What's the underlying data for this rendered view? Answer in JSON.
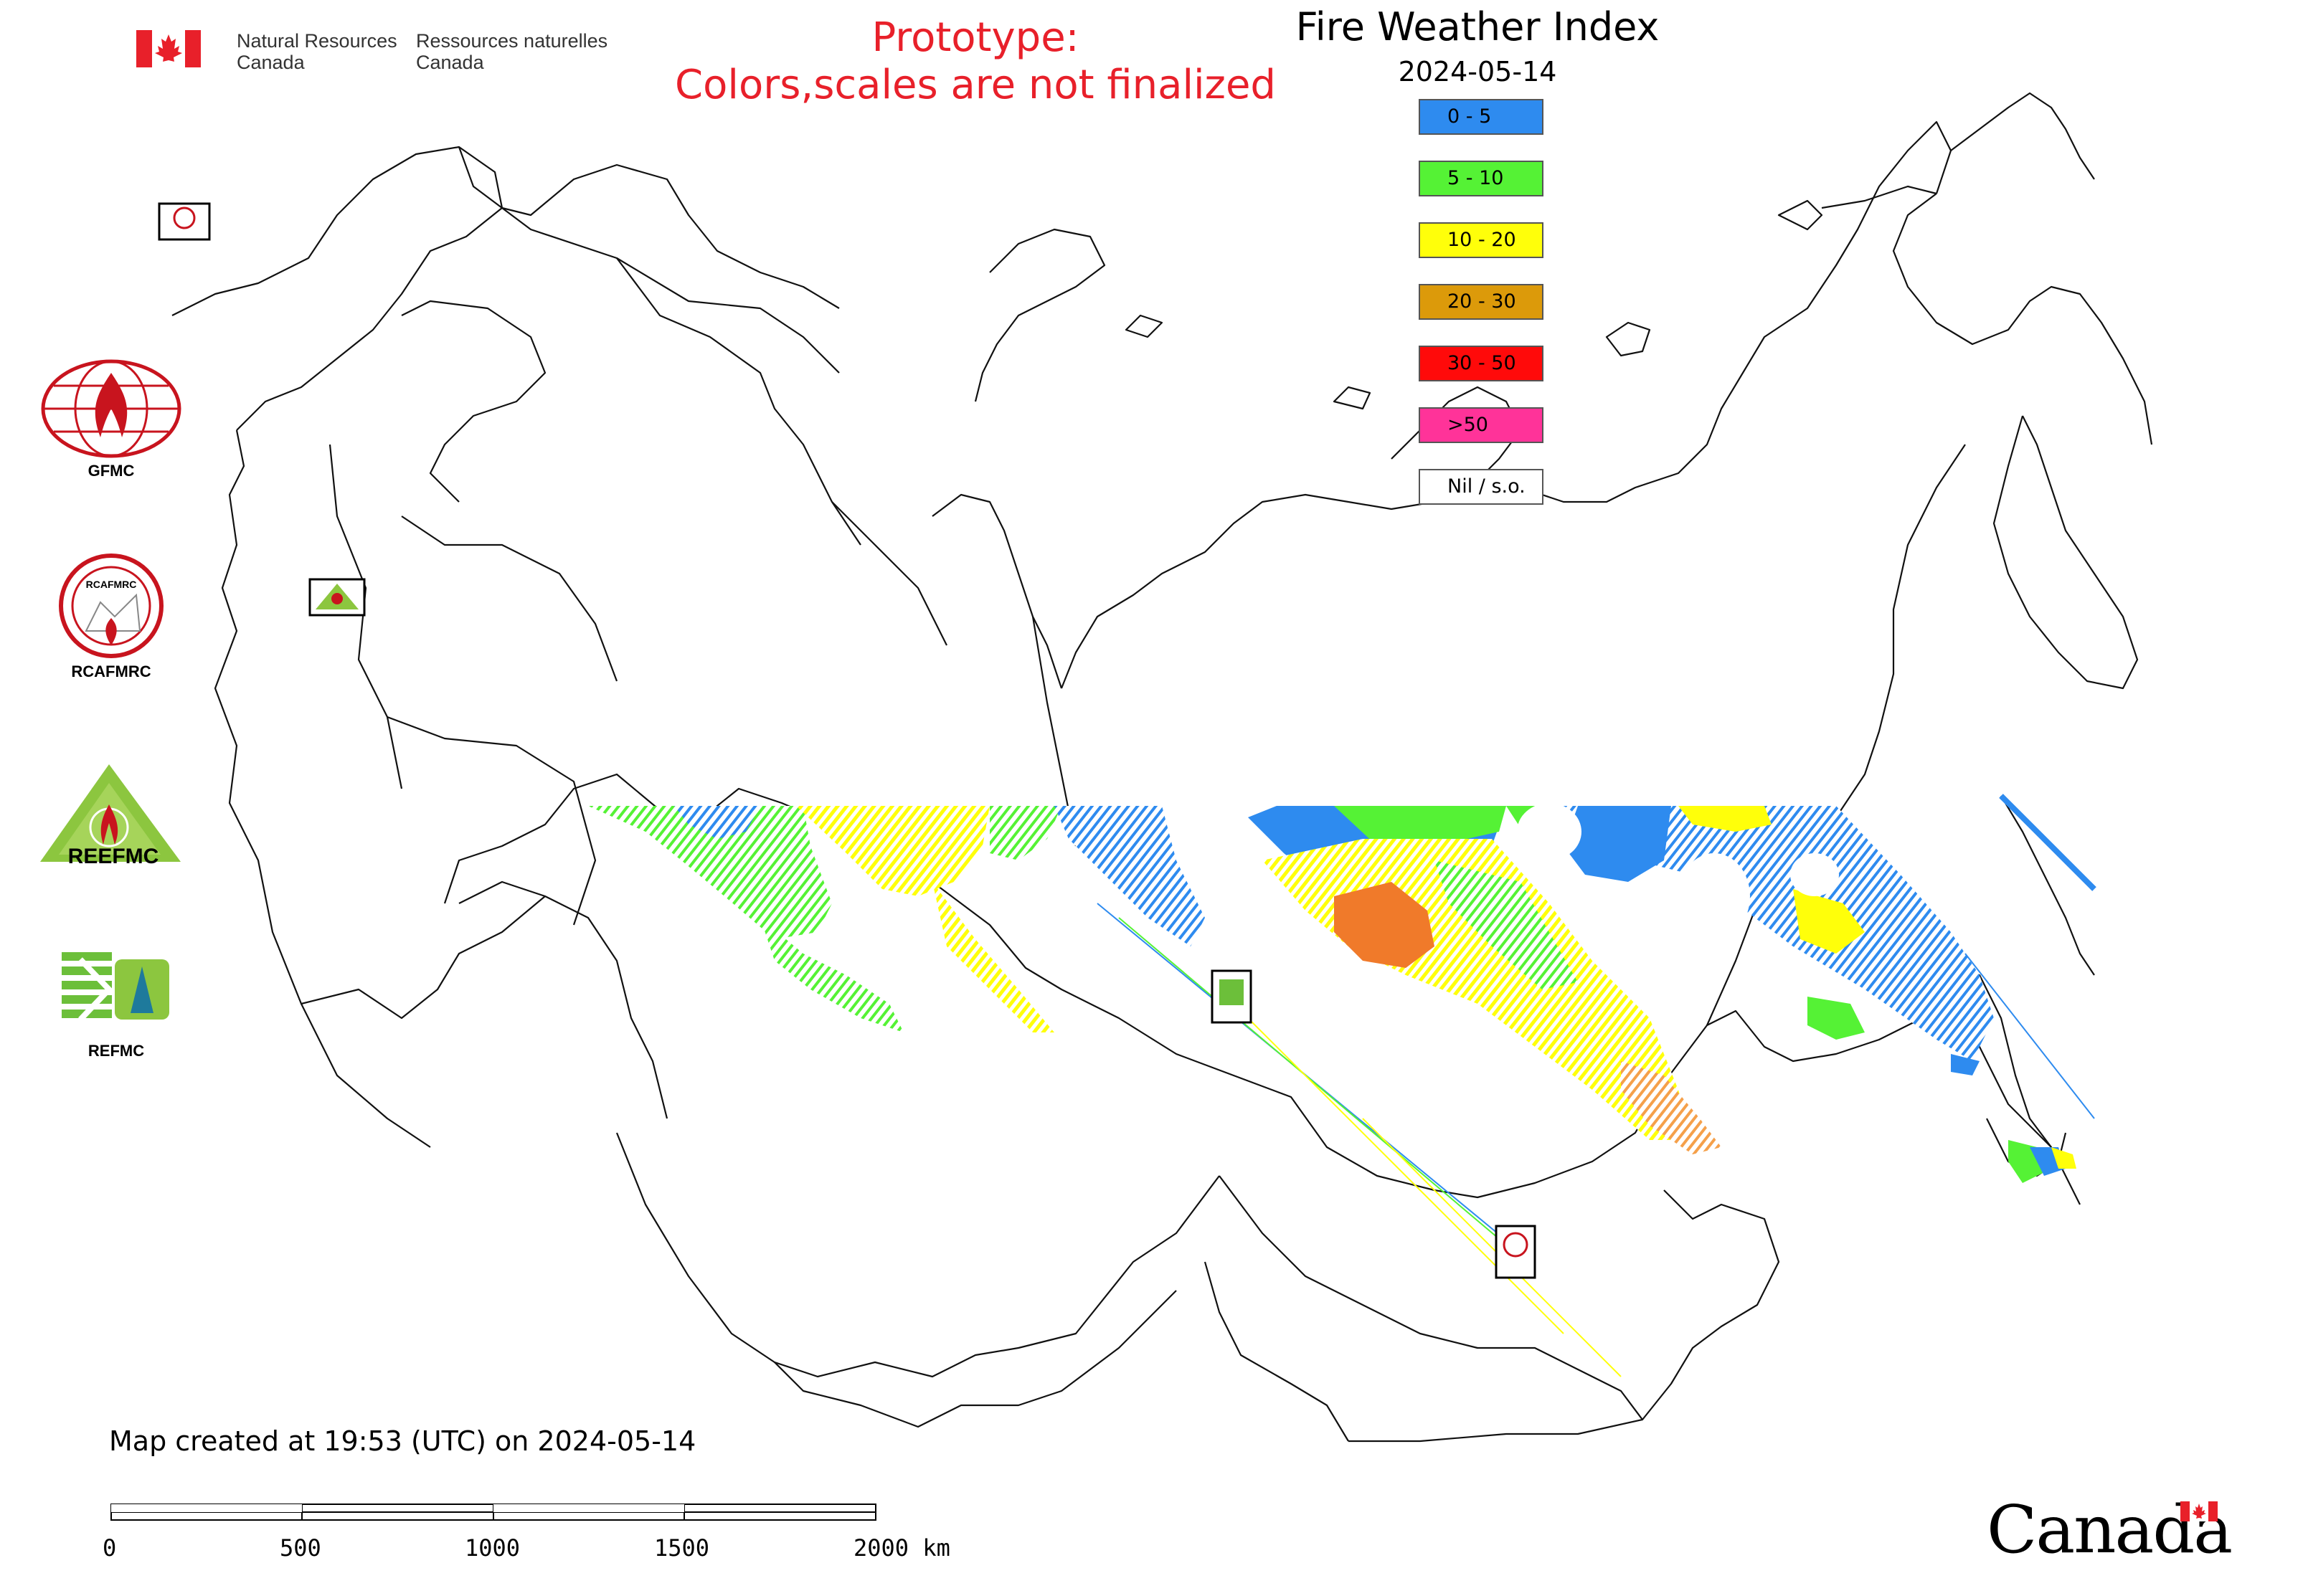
{
  "header": {
    "org_en_line1": "Natural Resources",
    "org_en_line2": "Canada",
    "org_fr_line1": "Ressources naturelles",
    "org_fr_line2": "Canada",
    "prototype_line1": "Prototype:",
    "prototype_line2": "Colors,scales are not finalized",
    "title": "Fire Weather Index",
    "date": "2024-05-14"
  },
  "legend": {
    "items": [
      {
        "label": "0 - 5",
        "color": "#2e8bef"
      },
      {
        "label": "5 - 10",
        "color": "#55f235"
      },
      {
        "label": "10 - 20",
        "color": "#ffff0a"
      },
      {
        "label": "20 - 30",
        "color": "#dc9a0a"
      },
      {
        "label": "30 - 50",
        "color": "#ff0a0a"
      },
      {
        "label": ">50",
        "color": "#ff3399"
      },
      {
        "label": "Nil / s.o.",
        "color": "#ffffff"
      }
    ]
  },
  "logos": {
    "gfmc": "GFMC",
    "rcafmrc": "RCAFMRC",
    "reefmc": "REEFMC",
    "refmc": "REFMC",
    "reefmc_text": "REEFMC",
    "rcafmrc_text": "RCAFMRC"
  },
  "footer": {
    "created": "Map created at 19:53 (UTC) on 2024-05-14",
    "scale_labels": [
      "0",
      "500",
      "1000",
      "1500",
      "2000 km"
    ],
    "canada_wordmark": "Canada"
  },
  "icons": [
    "canada-flag-icon",
    "gfmc-logo-icon",
    "rcafmrc-logo-icon",
    "reefmc-logo-icon",
    "refmc-logo-icon"
  ]
}
